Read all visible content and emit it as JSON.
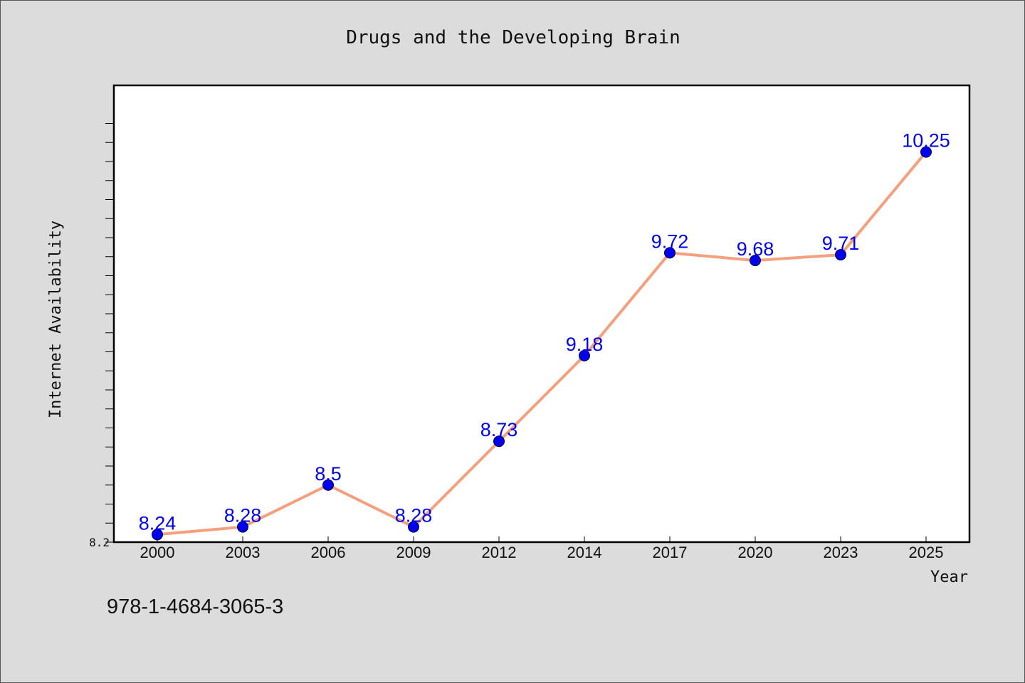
{
  "chart_data": {
    "type": "line",
    "title": "Drugs and the Developing Brain",
    "xlabel": "Year",
    "ylabel": "Internet Availability",
    "categories": [
      "2000",
      "2003",
      "2006",
      "2009",
      "2012",
      "2014",
      "2017",
      "2020",
      "2023",
      "2025"
    ],
    "series": [
      {
        "values": [
          8.24,
          8.28,
          8.5,
          8.28,
          8.73,
          9.18,
          9.72,
          9.68,
          9.71,
          10.25
        ]
      }
    ],
    "y_tick_labels": [
      "8.2"
    ],
    "ylim": [
      8.2,
      10.6
    ],
    "grid": false,
    "legend": "none",
    "line_color": "#f4a07e",
    "marker_color": "#0000ee",
    "label_color": "#0000ee"
  },
  "footer_text": "978-1-4684-3065-3"
}
